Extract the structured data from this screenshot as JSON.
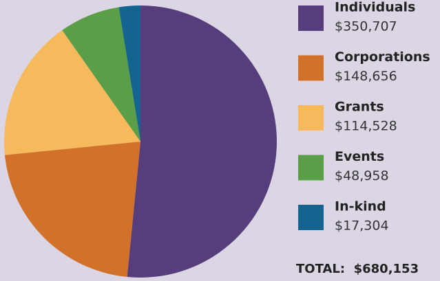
{
  "chart_data": {
    "type": "pie",
    "categories": [
      "Individuals",
      "Corporations",
      "Grants",
      "Events",
      "In-kind"
    ],
    "values": [
      350707,
      148656,
      114528,
      48958,
      17304
    ],
    "value_labels": [
      "$350,707",
      "$148,656",
      "$114,528",
      "$48,958",
      "$17,304"
    ],
    "colors": [
      "#563d7c",
      "#d2722a",
      "#f6b95b",
      "#5a9e47",
      "#15648f"
    ],
    "annotation": "TOTAL:  $680,153",
    "legend": "right"
  }
}
